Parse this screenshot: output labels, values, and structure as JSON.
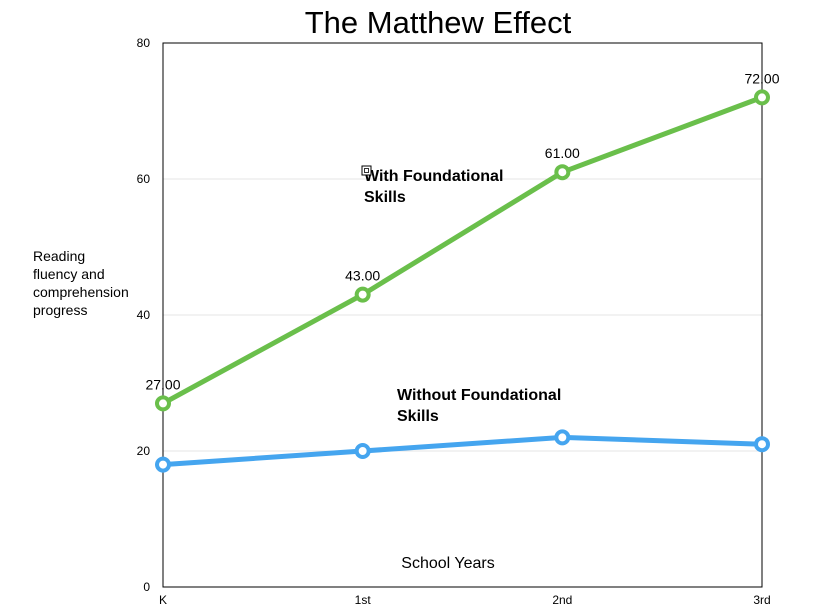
{
  "chart_data": {
    "type": "line",
    "title": "The Matthew Effect",
    "xlabel": "School Years",
    "ylabel_lines": [
      "Reading",
      "fluency and",
      "comprehension",
      "progress"
    ],
    "categories": [
      "K",
      "1st",
      "2nd",
      "3rd"
    ],
    "ylim": [
      0,
      80
    ],
    "yticks": [
      "0",
      "20",
      "40",
      "60",
      "80"
    ],
    "grid": true,
    "series": [
      {
        "name": "With Foundational Skills",
        "color": "#6abf4b",
        "values": [
          27,
          43,
          61,
          72
        ],
        "data_labels": [
          "27.00",
          "43.00",
          "61.00",
          "72.00"
        ]
      },
      {
        "name": "Without Foundational Skills",
        "color": "#45a5ef",
        "values": [
          18,
          20,
          22,
          21
        ]
      }
    ],
    "annotations": [
      {
        "lines": [
          "With Foundational",
          "Skills"
        ]
      },
      {
        "lines": [
          "Without Foundational",
          "Skills"
        ]
      }
    ]
  }
}
